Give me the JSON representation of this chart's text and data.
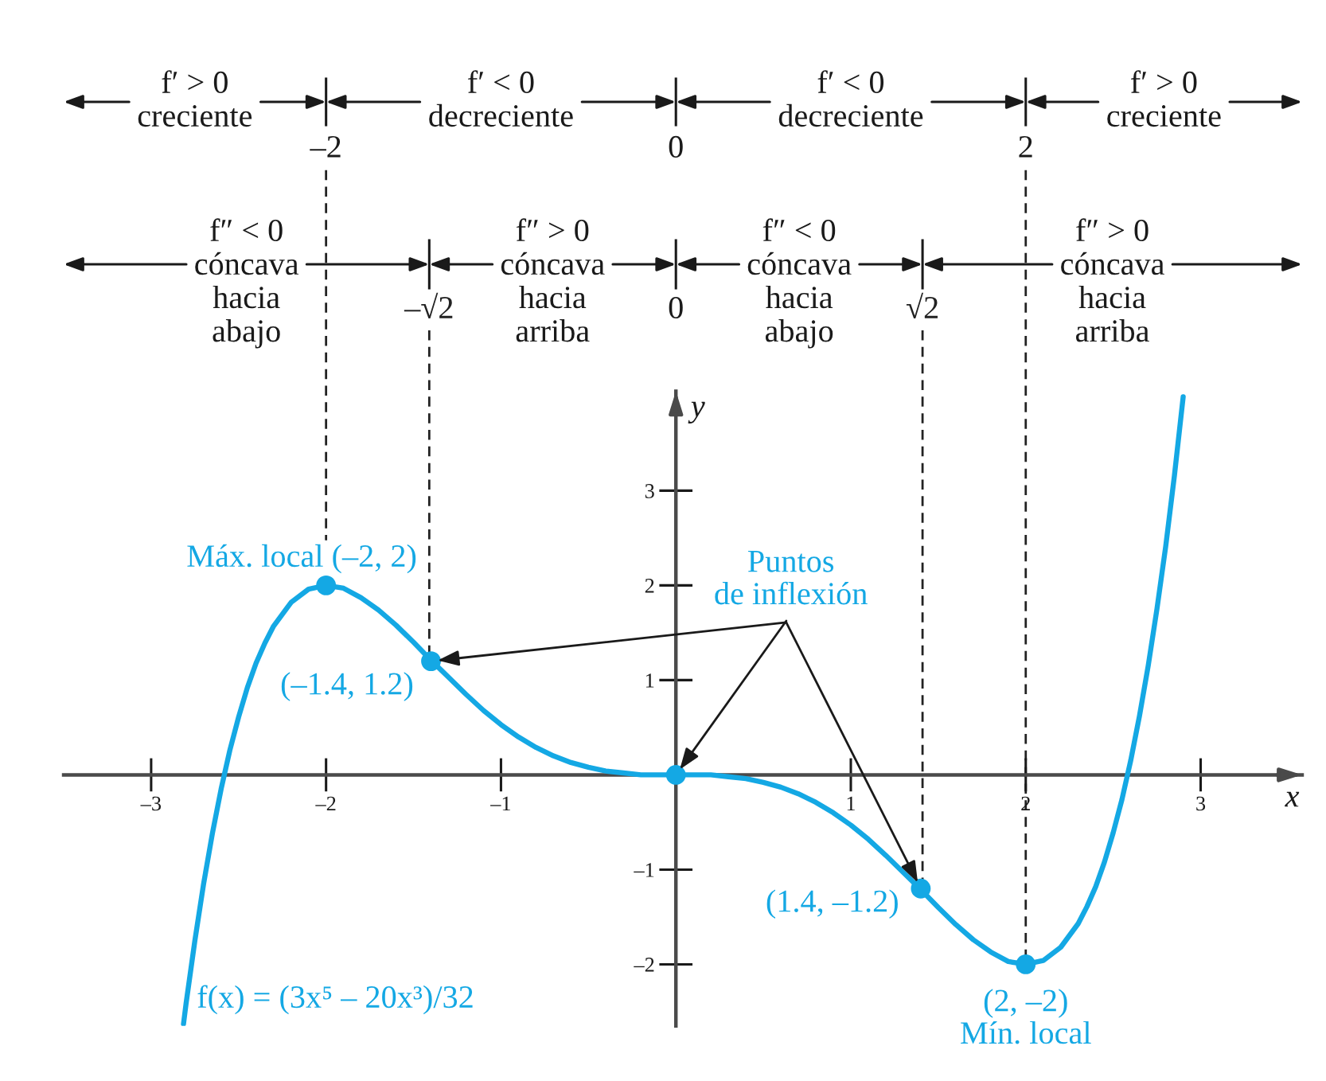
{
  "chart_data": {
    "type": "line",
    "xlabel": "x",
    "ylabel": "y",
    "xlim": [
      -3.5,
      3.58
    ],
    "ylim": [
      -2.65,
      4.05
    ],
    "x2lim": [
      -3.5,
      3.58
    ],
    "x2ticks": [
      {
        "value": -2,
        "label": "–2"
      },
      0,
      2
    ],
    "xticks": [
      {
        "value": -3,
        "label": "–3"
      },
      {
        "value": -2,
        "label": "–2"
      },
      {
        "value": -1,
        "label": "–1"
      },
      1,
      2,
      3
    ],
    "yticks": [
      {
        "value": -2,
        "label": "–2"
      },
      {
        "value": -1,
        "label": "–1"
      },
      1,
      2,
      3
    ],
    "series": [
      {
        "name": "f(x) = (3x⁵ – 20x³)/32",
        "color": "#14a8e4",
        "x": [
          -2.815,
          -2.8,
          -2.75,
          -2.7,
          -2.65,
          -2.6,
          -2.55,
          -2.5,
          -2.45,
          -2.4,
          -2.35,
          -2.3,
          -2.2,
          -2.1,
          -2.0,
          -1.9,
          -1.8,
          -1.7,
          -1.6,
          -1.5,
          -1.4,
          -1.3,
          -1.2,
          -1.1,
          -1.0,
          -0.9,
          -0.8,
          -0.7,
          -0.6,
          -0.5,
          -0.4,
          -0.3,
          -0.2,
          0,
          0.2,
          0.3,
          0.4,
          0.5,
          0.6,
          0.7,
          0.8,
          0.9,
          1.0,
          1.1,
          1.2,
          1.3,
          1.4,
          1.5,
          1.6,
          1.7,
          1.8,
          1.9,
          2.0,
          2.1,
          2.2,
          2.3,
          2.35,
          2.4,
          2.45,
          2.5,
          2.55,
          2.6,
          2.65,
          2.7,
          2.75,
          2.8,
          2.85,
          2.9
        ],
        "values": [
          -2.63,
          -2.41,
          -1.75,
          -1.15,
          -0.62,
          -0.15,
          0.26,
          0.61,
          0.92,
          1.18,
          1.39,
          1.57,
          1.82,
          1.96,
          2,
          1.97,
          1.87,
          1.74,
          1.58,
          1.4,
          1.21,
          1.03,
          0.85,
          0.68,
          0.53,
          0.4,
          0.29,
          0.2,
          0.13,
          0.08,
          0.04,
          0.02,
          0,
          0,
          0,
          -0.02,
          -0.04,
          -0.08,
          -0.13,
          -0.2,
          -0.29,
          -0.4,
          -0.53,
          -0.68,
          -0.85,
          -1.03,
          -1.21,
          -1.4,
          -1.58,
          -1.74,
          -1.87,
          -1.97,
          -2,
          -1.96,
          -1.82,
          -1.57,
          -1.39,
          -1.18,
          -0.92,
          -0.61,
          -0.26,
          0.15,
          0.62,
          1.15,
          1.75,
          2.41,
          3.16,
          3.99
        ]
      },
      {
        "type": "scatter",
        "marker": "circle",
        "color": "#14a8e4",
        "x": [
          -2,
          2
        ],
        "values": [
          2,
          -2
        ]
      },
      {
        "type": "scatter",
        "marker": "circle",
        "color": "#14a8e4",
        "x": [
          -1.4,
          0,
          1.4
        ],
        "values": [
          1.2,
          0,
          -1.2
        ]
      }
    ],
    "ref_lines": [
      {
        "axis": "x",
        "value": -2,
        "line_style": "dashed",
        "color": "#222222"
      },
      {
        "axis": "x",
        "value": -1.41,
        "label": "–√2",
        "line_style": "dashed",
        "color": "#222222"
      },
      {
        "axis": "x",
        "value": 1.41,
        "label": "√2",
        "line_style": "dashed",
        "color": "#222222"
      },
      {
        "axis": "x",
        "value": 2,
        "line_style": "dashed",
        "color": "#222222"
      }
    ],
    "annotations": [
      "f′ > 0\ncreciente",
      "f′ < 0\ndecreciente",
      "f′ < 0\ndecreciente",
      "f′ > 0\ncreciente",
      "f″ < 0\ncóncava\nhacia\nabajo",
      "f″ > 0\ncóncava\nhacia\narriba",
      "f″ < 0\ncóncava\nhacia\nabajo",
      "f″ > 0\ncóncava\nhacia\narriba",
      "0",
      {
        "text": "Máx. local (–2, 2)",
        "x": -2,
        "y": 2
      },
      {
        "text": "(–1.4, 1.2)",
        "x": -1.4,
        "y": 1.2
      },
      {
        "text": "(1.4, –1.2)",
        "x": 1.4,
        "y": -1.2
      },
      {
        "text": "(2, –2)\nMín. local",
        "x": 2,
        "y": -2
      },
      {
        "text": "Puntos\nde inflexión",
        "x": 0,
        "y": 0
      }
    ]
  }
}
